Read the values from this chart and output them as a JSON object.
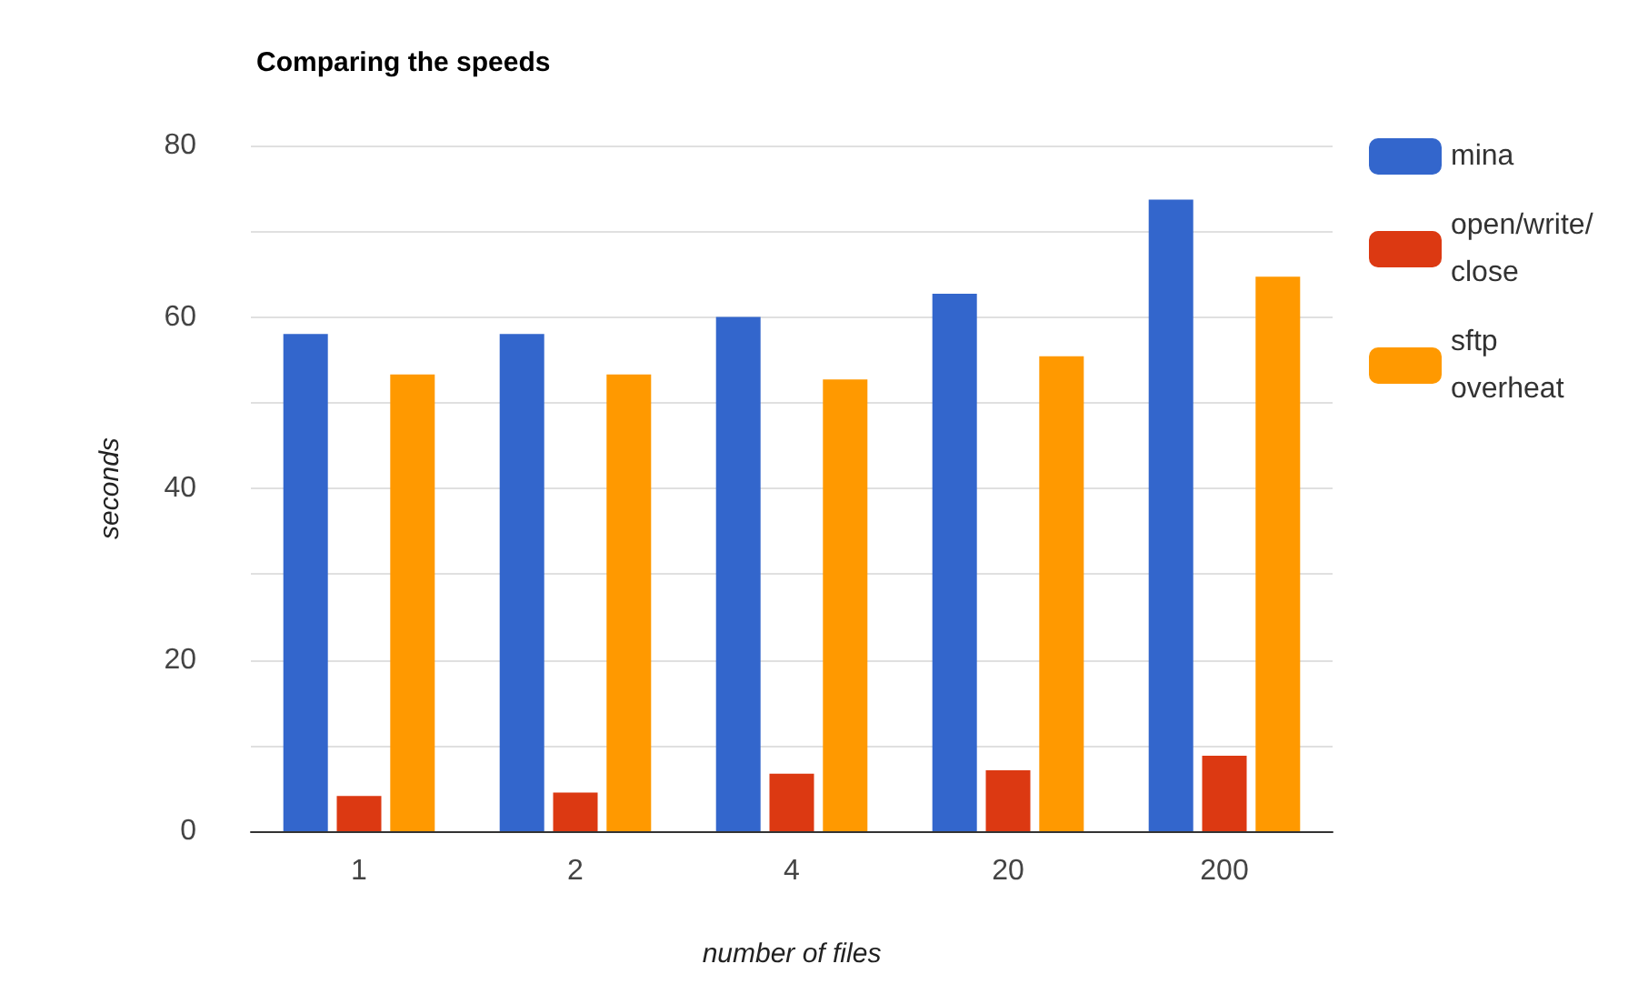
{
  "chart_data": {
    "type": "bar",
    "title": "Comparing the speeds",
    "xlabel": "number of files",
    "ylabel": "seconds",
    "categories": [
      "1",
      "2",
      "4",
      "20",
      "200"
    ],
    "series": [
      {
        "name": "mina",
        "color": "#3366cc",
        "values": [
          58,
          58,
          60,
          62.7,
          73.7
        ]
      },
      {
        "name": "open/write/close",
        "color": "#dc3912",
        "values": [
          4.1,
          4.5,
          6.7,
          7.1,
          8.8
        ]
      },
      {
        "name": "sftp overheat",
        "color": "#ff9900",
        "values": [
          53.3,
          53.3,
          52.7,
          55.4,
          64.7
        ]
      }
    ],
    "ylim": [
      0,
      80
    ],
    "yticks": [
      0,
      {
        "value": 10,
        "label": null
      },
      20,
      {
        "value": 30,
        "label": null
      },
      40,
      {
        "value": 50,
        "label": null
      },
      60,
      {
        "value": 70,
        "label": null
      },
      80
    ],
    "grid": "y",
    "legend": "top right"
  }
}
